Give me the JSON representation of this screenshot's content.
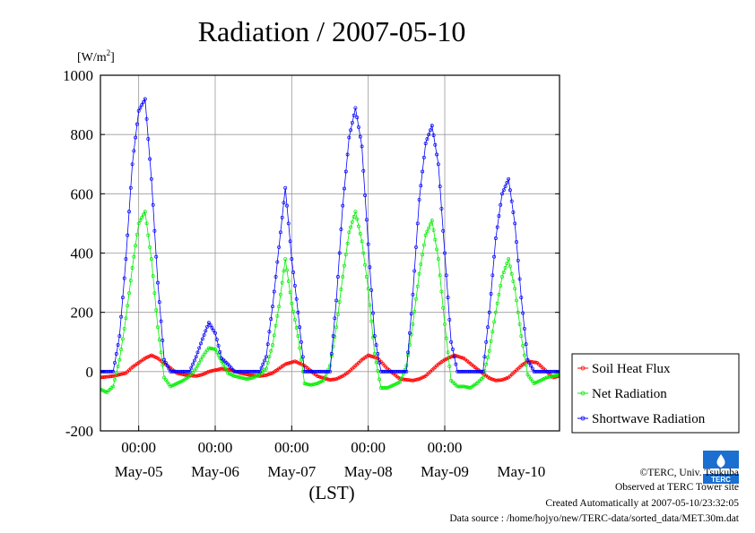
{
  "chart_data": {
    "type": "line",
    "title": "Radiation / 2007-05-10",
    "ylabel": "[W/m2]",
    "ylabel_main": "[W/m",
    "ylabel_sup": "2",
    "ylabel_close": "]",
    "xlabel": "(LST)",
    "ylim": [
      -200,
      1000
    ],
    "yticks": [
      "1000",
      "800",
      "600",
      "400",
      "200",
      "0",
      "-200"
    ],
    "xlim": [
      0,
      144
    ],
    "time_ticks": [
      "00:00",
      "00:00",
      "00:00",
      "00:00",
      "00:00"
    ],
    "day_labels": [
      "May-05",
      "May-06",
      "May-07",
      "May-08",
      "May-09",
      "May-10"
    ],
    "grid": true,
    "legend_position": "right",
    "series": [
      {
        "name": "Soil Heat Flux",
        "color": "#ff0000",
        "x": [
          0,
          4,
          8,
          10,
          12,
          14,
          16,
          18,
          21,
          24,
          27,
          30,
          32,
          34,
          36,
          38,
          41,
          44,
          47,
          50,
          52,
          54,
          56,
          58,
          61,
          64,
          68,
          72,
          74,
          76,
          78,
          80,
          82,
          84,
          87,
          90,
          94,
          98,
          100,
          102,
          104,
          106,
          108,
          111,
          114,
          118,
          122,
          124,
          126,
          128,
          130,
          132,
          134,
          137,
          140,
          142,
          144
        ],
        "values": [
          -20,
          -15,
          -5,
          15,
          30,
          45,
          55,
          45,
          20,
          -5,
          -12,
          -15,
          -10,
          0,
          5,
          10,
          5,
          -5,
          -12,
          -15,
          -12,
          -5,
          10,
          25,
          35,
          20,
          -15,
          -28,
          -25,
          -15,
          0,
          20,
          40,
          55,
          45,
          10,
          -25,
          -30,
          -25,
          -15,
          5,
          25,
          40,
          55,
          45,
          10,
          -22,
          -30,
          -28,
          -20,
          0,
          20,
          35,
          30,
          0,
          -20,
          -15
        ]
      },
      {
        "name": "Net Radiation",
        "color": "#00ee00",
        "x": [
          0,
          2,
          4,
          6,
          8,
          10,
          12,
          14,
          16,
          18,
          20,
          22,
          24,
          26,
          28,
          30,
          32,
          34,
          36,
          38,
          40,
          42,
          44,
          46,
          48,
          50,
          52,
          54,
          56,
          58,
          60,
          62,
          64,
          66,
          68,
          70,
          72,
          74,
          76,
          78,
          80,
          82,
          84,
          86,
          88,
          90,
          92,
          94,
          96,
          98,
          100,
          102,
          104,
          106,
          108,
          110,
          112,
          114,
          116,
          118,
          120,
          122,
          124,
          126,
          128,
          130,
          132,
          134,
          136,
          138,
          140,
          142,
          144
        ],
        "values": [
          -60,
          -70,
          -50,
          40,
          180,
          350,
          500,
          540,
          380,
          150,
          -20,
          -50,
          -40,
          -30,
          -15,
          10,
          50,
          80,
          75,
          35,
          -5,
          -15,
          -20,
          -25,
          -20,
          -10,
          10,
          90,
          220,
          380,
          230,
          120,
          -40,
          -45,
          -40,
          -30,
          20,
          150,
          320,
          470,
          540,
          440,
          280,
          60,
          -55,
          -55,
          -45,
          -35,
          20,
          160,
          330,
          460,
          510,
          380,
          160,
          -30,
          -50,
          -50,
          -55,
          -40,
          -20,
          70,
          200,
          320,
          380,
          280,
          120,
          -10,
          -40,
          -30,
          -20,
          -15,
          -10
        ]
      },
      {
        "name": "Shortwave Radiation",
        "color": "#0000ff",
        "x": [
          0,
          2,
          4,
          6,
          8,
          10,
          12,
          14,
          16,
          18,
          20,
          22,
          24,
          26,
          28,
          30,
          32,
          34,
          36,
          38,
          40,
          42,
          44,
          46,
          48,
          50,
          52,
          54,
          56,
          58,
          60,
          62,
          64,
          66,
          68,
          70,
          72,
          74,
          76,
          78,
          80,
          82,
          84,
          86,
          88,
          90,
          92,
          94,
          96,
          98,
          100,
          102,
          104,
          106,
          108,
          110,
          112,
          114,
          116,
          118,
          120,
          122,
          124,
          126,
          128,
          130,
          132,
          134,
          136,
          138,
          140,
          142,
          144
        ],
        "values": [
          0,
          0,
          0,
          120,
          380,
          700,
          880,
          920,
          650,
          300,
          40,
          0,
          0,
          0,
          0,
          50,
          110,
          165,
          130,
          45,
          25,
          0,
          0,
          0,
          0,
          0,
          50,
          220,
          420,
          620,
          380,
          200,
          0,
          0,
          0,
          0,
          0,
          240,
          560,
          790,
          890,
          760,
          430,
          120,
          0,
          0,
          0,
          0,
          0,
          260,
          580,
          770,
          830,
          700,
          400,
          100,
          0,
          0,
          0,
          0,
          0,
          200,
          450,
          600,
          650,
          500,
          250,
          40,
          0,
          0,
          0,
          0,
          0
        ]
      }
    ]
  },
  "footer": {
    "copyright": "©TERC, Univ. Tsukuba",
    "observed": "Observed at TERC Tower site",
    "created": "Created Automatically at 2007-05-10/23:32:05",
    "source": "Data source : /home/hojyo/new/TERC-data/sorted_data/MET.30m.dat"
  },
  "logo": {
    "text": "TERC",
    "color": "#1a6fd0"
  }
}
